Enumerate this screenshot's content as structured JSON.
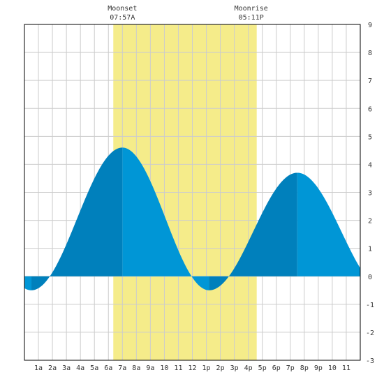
{
  "chart_data": {
    "type": "area",
    "title": "",
    "xlabel": "",
    "ylabel": "",
    "x_range_hours": [
      0,
      24
    ],
    "ylim": [
      -3,
      9
    ],
    "y_ticks": [
      -3,
      -2,
      -1,
      0,
      1,
      2,
      3,
      4,
      5,
      6,
      7,
      8,
      9
    ],
    "x_tick_labels": [
      {
        "hour": 1,
        "label": "1a"
      },
      {
        "hour": 2,
        "label": "2a"
      },
      {
        "hour": 3,
        "label": "3a"
      },
      {
        "hour": 4,
        "label": "4a"
      },
      {
        "hour": 5,
        "label": "5a"
      },
      {
        "hour": 6,
        "label": "6a"
      },
      {
        "hour": 7,
        "label": "7a"
      },
      {
        "hour": 8,
        "label": "8a"
      },
      {
        "hour": 9,
        "label": "9a"
      },
      {
        "hour": 10,
        "label": "10"
      },
      {
        "hour": 11,
        "label": "11"
      },
      {
        "hour": 12,
        "label": "12"
      },
      {
        "hour": 13,
        "label": "1p"
      },
      {
        "hour": 14,
        "label": "2p"
      },
      {
        "hour": 15,
        "label": "3p"
      },
      {
        "hour": 16,
        "label": "4p"
      },
      {
        "hour": 17,
        "label": "5p"
      },
      {
        "hour": 18,
        "label": "6p"
      },
      {
        "hour": 19,
        "label": "7p"
      },
      {
        "hour": 20,
        "label": "8p"
      },
      {
        "hour": 21,
        "label": "9p"
      },
      {
        "hour": 22,
        "label": "10"
      },
      {
        "hour": 23,
        "label": "11"
      }
    ],
    "grid": true,
    "tide_extremes": [
      {
        "hour": 0.5,
        "height": -0.5
      },
      {
        "hour": 7.0,
        "height": 4.6
      },
      {
        "hour": 13.2,
        "height": -0.5
      },
      {
        "hour": 19.5,
        "height": 3.7
      }
    ],
    "series_end": {
      "hour": 24,
      "height": 0.1
    },
    "moon_visible_band": {
      "start_hour": 6.35,
      "end_hour": 16.6
    },
    "moon_events": [
      {
        "label": "Moonset",
        "time": "07:57A",
        "hour": 7.0
      },
      {
        "label": "Moonrise",
        "time": "05:11P",
        "hour": 16.2
      }
    ],
    "colors": {
      "moon_band": "#f5ec8a",
      "rising_tide": "#0080bc",
      "falling_tide": "#0096d6",
      "grid": "#cccccc",
      "axis": "#000000"
    }
  }
}
